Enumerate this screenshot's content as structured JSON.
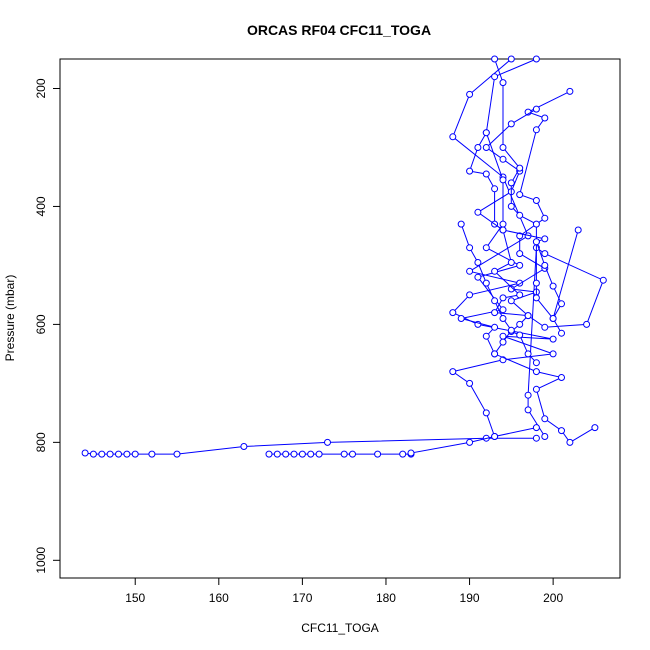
{
  "chart_data": {
    "type": "line",
    "title": "ORCAS RF04 CFC11_TOGA",
    "xlabel": "CFC11_TOGA",
    "ylabel": "Pressure (mbar)",
    "xlim": [
      141,
      208
    ],
    "ylim": [
      1030,
      150
    ],
    "y_reversed": true,
    "x_ticks": [
      150,
      160,
      170,
      180,
      190,
      200
    ],
    "y_ticks": [
      200,
      400,
      600,
      800,
      1000
    ],
    "color": "#0000ff",
    "marker": "open-circle",
    "grid": false,
    "legend": "none",
    "series": [
      {
        "x": [
          195,
          190,
          188,
          194,
          197,
          190,
          196,
          190,
          188,
          191,
          200,
          194,
          200,
          194,
          188,
          190,
          192,
          193
        ],
        "y": [
          150,
          210,
          282,
          350,
          450,
          510,
          530,
          550,
          580,
          600,
          625,
          620,
          650,
          660,
          680,
          700,
          750,
          790
        ]
      },
      {
        "x": [
          198,
          193,
          192,
          194,
          194,
          192,
          196,
          191,
          194,
          189,
          193,
          192,
          193,
          198,
          201,
          198,
          199,
          201,
          202,
          205
        ],
        "y": [
          150,
          180,
          275,
          355,
          430,
          470,
          500,
          520,
          575,
          590,
          605,
          620,
          650,
          680,
          690,
          710,
          760,
          780,
          800,
          775
        ]
      },
      {
        "x": [
          202,
          197,
          199,
          198,
          196,
          198,
          199,
          196,
          196,
          199,
          195,
          198,
          195,
          197,
          199,
          204,
          206,
          199,
          198,
          197,
          197,
          199
        ],
        "y": [
          205,
          240,
          250,
          270,
          380,
          390,
          420,
          450,
          480,
          505,
          540,
          545,
          560,
          585,
          605,
          600,
          525,
          480,
          470,
          720,
          745,
          790
        ]
      },
      {
        "x": [
          192,
          191,
          190,
          192,
          193,
          193,
          194,
          195,
          193,
          196,
          194,
          193,
          197,
          196,
          195,
          196,
          197,
          198
        ],
        "y": [
          275,
          300,
          340,
          345,
          370,
          430,
          440,
          495,
          510,
          550,
          555,
          580,
          585,
          600,
          612,
          618,
          650,
          665
        ]
      },
      {
        "x": [
          198,
          195,
          192,
          194,
          196,
          195,
          191,
          194,
          199,
          198,
          199,
          200,
          201,
          200,
          203
        ],
        "y": [
          235,
          260,
          300,
          320,
          340,
          375,
          410,
          440,
          455,
          460,
          500,
          535,
          565,
          590,
          440
        ]
      },
      {
        "x": [
          193,
          194,
          194,
          196,
          195,
          195,
          196,
          198,
          198,
          198,
          198,
          200,
          201
        ],
        "y": [
          150,
          190,
          300,
          335,
          360,
          400,
          415,
          430,
          460,
          530,
          555,
          590,
          615
        ]
      },
      {
        "x": [
          189,
          190,
          191,
          192,
          193,
          194,
          195,
          194,
          193
        ],
        "y": [
          430,
          470,
          495,
          530,
          560,
          590,
          610,
          630,
          650
        ]
      },
      {
        "x": [
          144,
          145,
          146,
          147,
          148,
          149,
          150,
          152,
          155,
          163,
          173,
          192,
          198
        ],
        "y": [
          818,
          820,
          820,
          820,
          820,
          820,
          820,
          820,
          820,
          807,
          800,
          793,
          793
        ]
      },
      {
        "x": [
          166,
          167,
          168,
          169,
          170,
          171,
          172,
          175,
          176,
          179,
          182,
          183,
          183,
          190,
          193,
          198
        ],
        "y": [
          820,
          820,
          820,
          820,
          820,
          820,
          820,
          820,
          820,
          820,
          820,
          820,
          818,
          800,
          790,
          775
        ]
      }
    ]
  }
}
